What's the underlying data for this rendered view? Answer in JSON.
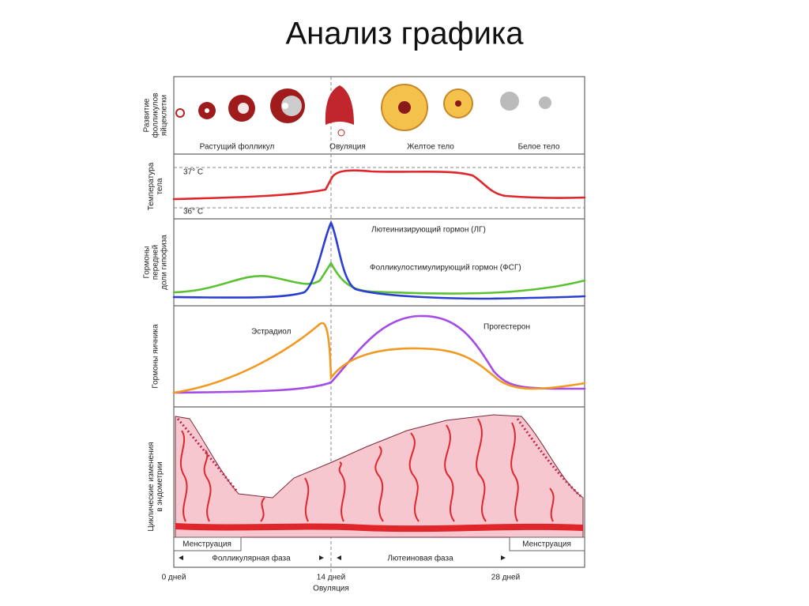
{
  "title": "Анализ графика",
  "panels": [
    {
      "label": [
        "Развитие",
        "фолликулов",
        "яйцеклетки"
      ],
      "annotations": [
        "Растущий фолликул",
        "Овуляция",
        "Желтое тело",
        "Белое тело"
      ]
    },
    {
      "label": [
        "Температура",
        "тела"
      ],
      "annotations": [
        "37° C",
        "36° C"
      ]
    },
    {
      "label": [
        "Гормоны",
        "передней",
        "доли гипофиза"
      ],
      "annotations": [
        "Лютеинизирующий гормон (ЛГ)",
        "Фолликулостимулирующий гормон (ФСГ)"
      ]
    },
    {
      "label": [
        "Гормоны яичника"
      ],
      "annotations": [
        "Эстрадиол",
        "Прогестерон"
      ]
    },
    {
      "label": [
        "Циклические изменения",
        "в эндометрии"
      ],
      "annotations": []
    }
  ],
  "phases": {
    "menstruation_start": "Менструация",
    "follicular": "Фолликулярная фаза",
    "luteal": "Лютеиновая фаза",
    "menstruation_end": "Менструация"
  },
  "timeline": {
    "start": "0 дней",
    "ovulation_day": "14 дней",
    "ovulation": "Овуляция",
    "end": "28 дней"
  }
}
